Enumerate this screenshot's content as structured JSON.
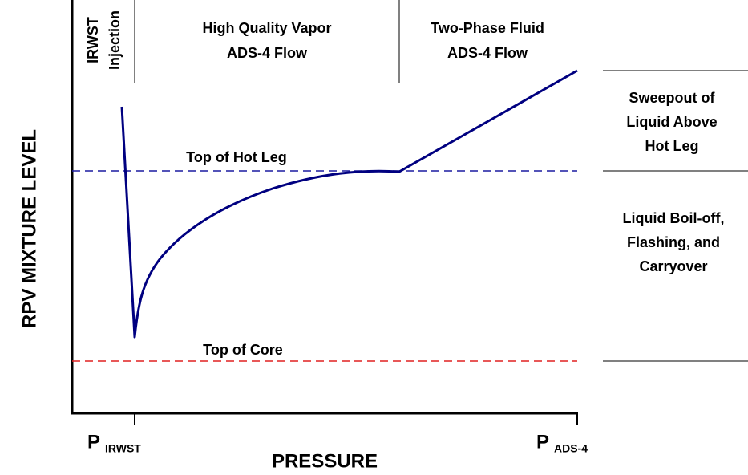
{
  "regions": [
    {
      "lines": [
        "IRWST",
        "Injection"
      ]
    },
    {
      "lines": [
        "High Quality Vapor",
        "ADS-4 Flow"
      ]
    },
    {
      "lines": [
        "Two-Phase Fluid",
        "ADS-4 Flow"
      ]
    }
  ],
  "levels": [
    "Top of Hot Leg",
    "Top of Core"
  ],
  "zones": [
    {
      "lines": [
        "Sweepout of",
        "Liquid Above",
        "Hot Leg"
      ]
    },
    {
      "lines": [
        "Liquid Boil-off,",
        "Flashing, and",
        "Carryover"
      ]
    }
  ],
  "axes": {
    "y_label": "RPV MIXTURE LEVEL",
    "x_label": "PRESSURE"
  },
  "x_markers": [
    {
      "symbol": "P",
      "subscript": "IRWST"
    },
    {
      "symbol": "P",
      "subscript": "ADS-4"
    }
  ]
}
